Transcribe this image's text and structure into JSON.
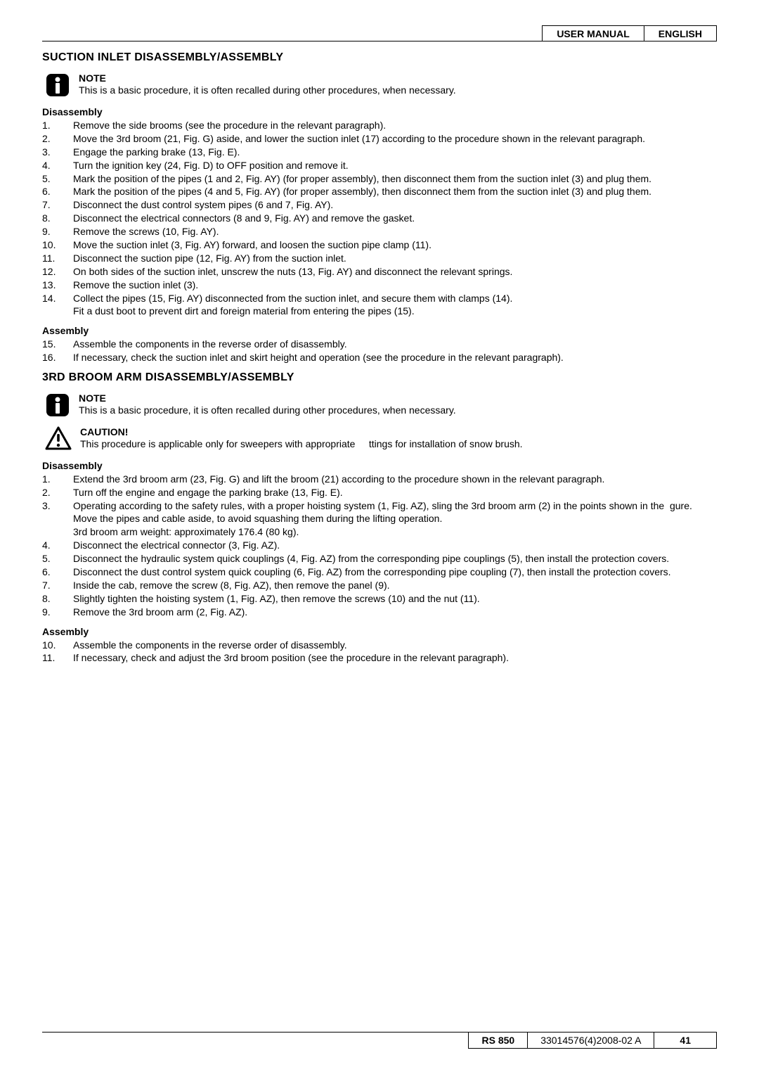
{
  "header": {
    "left": "USER MANUAL",
    "right": "ENGLISH"
  },
  "section1": {
    "title": "SUCTION INLET DISASSEMBLY/ASSEMBLY",
    "note_label": "NOTE",
    "note_text": "This is a basic procedure, it is often recalled during other procedures, when necessary.",
    "disassembly_head": "Disassembly",
    "disassembly_steps": [
      {
        "n": "1.",
        "t": "Remove the side brooms (see the procedure in the relevant paragraph)."
      },
      {
        "n": "2.",
        "t": "Move the 3rd broom (21, Fig. G) aside, and lower the suction inlet (17) according to the procedure shown in the relevant paragraph."
      },
      {
        "n": "3.",
        "t": "Engage the parking brake (13, Fig. E)."
      },
      {
        "n": "4.",
        "t": "Turn the ignition key (24, Fig. D) to OFF position and remove it."
      },
      {
        "n": "5.",
        "t": "Mark the position of the pipes (1 and 2, Fig. AY) (for proper assembly), then disconnect them from the suction inlet (3) and plug them."
      },
      {
        "n": "6.",
        "t": "Mark the position of the pipes (4 and 5, Fig. AY) (for proper assembly), then disconnect them from the suction inlet (3) and plug them."
      },
      {
        "n": "7.",
        "t": "Disconnect the dust control system pipes (6 and 7, Fig. AY)."
      },
      {
        "n": "8.",
        "t": "Disconnect the electrical connectors (8 and 9, Fig. AY) and remove the gasket."
      },
      {
        "n": "9.",
        "t": "Remove the screws (10, Fig. AY)."
      },
      {
        "n": "10.",
        "t": "Move the suction inlet (3, Fig. AY) forward, and loosen the suction pipe clamp (11)."
      },
      {
        "n": "11.",
        "t": "Disconnect the suction pipe (12, Fig. AY) from the suction inlet."
      },
      {
        "n": "12.",
        "t": "On both sides of the suction inlet, unscrew the nuts (13, Fig. AY) and disconnect the relevant springs."
      },
      {
        "n": "13.",
        "t": "Remove the suction inlet (3)."
      },
      {
        "n": "14.",
        "t": "Collect the pipes (15, Fig. AY) disconnected from the suction inlet, and secure them with clamps (14).\nFit a dust boot to prevent dirt and foreign material from entering the pipes (15)."
      }
    ],
    "assembly_head": "Assembly",
    "assembly_steps": [
      {
        "n": "15.",
        "t": "Assemble the components in the reverse order of disassembly."
      },
      {
        "n": "16.",
        "t": "If necessary, check the suction inlet and skirt height and operation (see the procedure in the relevant paragraph)."
      }
    ]
  },
  "section2": {
    "title": "3RD BROOM ARM DISASSEMBLY/ASSEMBLY",
    "note_label": "NOTE",
    "note_text": "This is a basic procedure, it is often recalled during other procedures, when necessary.",
    "caution_label": "CAUTION!",
    "caution_text": "This procedure is applicable only for sweepers with appropriate     ttings for installation of snow brush.",
    "disassembly_head": "Disassembly",
    "disassembly_steps": [
      {
        "n": "1.",
        "t": "Extend the 3rd broom arm (23, Fig. G) and lift the broom (21) according to the procedure shown in the relevant paragraph."
      },
      {
        "n": "2.",
        "t": "Turn off the engine and engage the parking brake (13, Fig. E)."
      },
      {
        "n": "3.",
        "t": "Operating according to the safety rules, with a proper hoisting system (1, Fig. AZ), sling the 3rd broom arm (2) in the points shown in the  gure. Move the pipes and cable aside, to avoid squashing them during the lifting operation.\n3rd broom arm weight: approximately 176.4 (80 kg)."
      },
      {
        "n": "4.",
        "t": "Disconnect the electrical connector (3, Fig. AZ)."
      },
      {
        "n": "5.",
        "t": "Disconnect the hydraulic system quick couplings (4, Fig. AZ) from the corresponding pipe couplings (5), then install the protection covers."
      },
      {
        "n": "6.",
        "t": "Disconnect the dust control system quick coupling (6, Fig. AZ) from the corresponding pipe coupling (7), then install the protection covers."
      },
      {
        "n": "7.",
        "t": "Inside the cab, remove the screw (8, Fig. AZ), then remove the panel (9)."
      },
      {
        "n": "8.",
        "t": "Slightly tighten the hoisting system (1, Fig. AZ), then remove the screws (10) and the nut (11)."
      },
      {
        "n": "9.",
        "t": "Remove the 3rd broom arm (2, Fig. AZ)."
      }
    ],
    "assembly_head": "Assembly",
    "assembly_steps": [
      {
        "n": "10.",
        "t": "Assemble the components in the reverse order of disassembly."
      },
      {
        "n": "11.",
        "t": "If necessary, check and adjust the 3rd broom position (see the procedure in the relevant paragraph)."
      }
    ]
  },
  "footer": {
    "product": "RS 850",
    "code": "33014576(4)2008-02 A",
    "page": "41"
  },
  "icons": {
    "info_fill": "#000000",
    "caution_stroke": "#000000"
  }
}
